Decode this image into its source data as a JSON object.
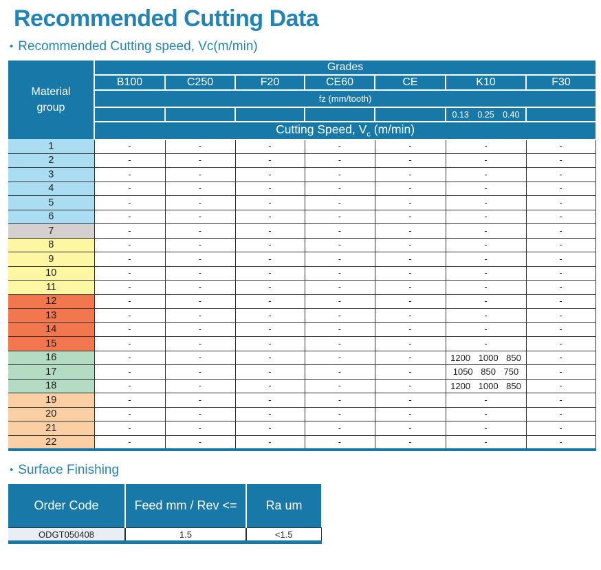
{
  "page": {
    "title": "Recommended Cutting Data",
    "bullet": "•"
  },
  "sections": {
    "cutting_speed_heading": "Recommended Cutting speed, Vc(m/min)",
    "surface_finishing_heading": "Surface Finishing"
  },
  "colors": {
    "header_blue": "#1878a8",
    "title_blue": "#2383b4",
    "row_blue": "#aadcf2",
    "row_gray": "#d4d0d0",
    "row_yellow": "#fdf6a2",
    "row_orange": "#f2764e",
    "row_green": "#b4dcc2",
    "row_peach": "#fbcfa4",
    "surface_code_cell_bg": "#e9edf4"
  },
  "cutting_table": {
    "material_group_label": "Material group",
    "grades_title": "Grades",
    "grade_columns": [
      "B100",
      "C250",
      "F20",
      "CE60",
      "CE",
      "K10",
      "F30"
    ],
    "fz_label": "fz (mm/tooth)",
    "k10_fz_values": "0.13 0.25 0.40",
    "cutting_speed_label": {
      "prefix": "Cutting Speed, V",
      "sub": "c",
      "suffix": " (m/min)"
    },
    "rows": [
      {
        "group": "1",
        "color": "blue",
        "values": [
          "-",
          "-",
          "-",
          "-",
          "-",
          "-",
          "-"
        ]
      },
      {
        "group": "2",
        "color": "blue",
        "values": [
          "-",
          "-",
          "-",
          "-",
          "-",
          "-",
          "-"
        ]
      },
      {
        "group": "3",
        "color": "blue",
        "values": [
          "-",
          "-",
          "-",
          "-",
          "-",
          "-",
          "-"
        ]
      },
      {
        "group": "4",
        "color": "blue",
        "values": [
          "-",
          "-",
          "-",
          "-",
          "-",
          "-",
          "-"
        ]
      },
      {
        "group": "5",
        "color": "blue",
        "values": [
          "-",
          "-",
          "-",
          "-",
          "-",
          "-",
          "-"
        ]
      },
      {
        "group": "6",
        "color": "blue",
        "values": [
          "-",
          "-",
          "-",
          "-",
          "-",
          "-",
          "-"
        ]
      },
      {
        "group": "7",
        "color": "gray",
        "values": [
          "-",
          "-",
          "-",
          "-",
          "-",
          "-",
          "-"
        ]
      },
      {
        "group": "8",
        "color": "yellow",
        "values": [
          "-",
          "-",
          "-",
          "-",
          "-",
          "-",
          "-"
        ]
      },
      {
        "group": "9",
        "color": "yellow",
        "values": [
          "-",
          "-",
          "-",
          "-",
          "-",
          "-",
          "-"
        ]
      },
      {
        "group": "10",
        "color": "yellow",
        "values": [
          "-",
          "-",
          "-",
          "-",
          "-",
          "-",
          "-"
        ]
      },
      {
        "group": "11",
        "color": "yellow",
        "values": [
          "-",
          "-",
          "-",
          "-",
          "-",
          "-",
          "-"
        ]
      },
      {
        "group": "12",
        "color": "orange",
        "values": [
          "-",
          "-",
          "-",
          "-",
          "-",
          "-",
          "-"
        ]
      },
      {
        "group": "13",
        "color": "orange",
        "values": [
          "-",
          "-",
          "-",
          "-",
          "-",
          "-",
          "-"
        ]
      },
      {
        "group": "14",
        "color": "orange",
        "values": [
          "-",
          "-",
          "-",
          "-",
          "-",
          "-",
          "-"
        ]
      },
      {
        "group": "15",
        "color": "orange",
        "values": [
          "-",
          "-",
          "-",
          "-",
          "-",
          "-",
          "-"
        ]
      },
      {
        "group": "16",
        "color": "green",
        "values": [
          "-",
          "-",
          "-",
          "-",
          "-",
          "1200 1000 850",
          "-"
        ]
      },
      {
        "group": "17",
        "color": "green",
        "values": [
          "-",
          "-",
          "-",
          "-",
          "-",
          "1050 850 750",
          "-"
        ]
      },
      {
        "group": "18",
        "color": "green",
        "values": [
          "-",
          "-",
          "-",
          "-",
          "-",
          "1200 1000 850",
          "-"
        ]
      },
      {
        "group": "19",
        "color": "peach",
        "values": [
          "-",
          "-",
          "-",
          "-",
          "-",
          "-",
          "-"
        ]
      },
      {
        "group": "20",
        "color": "peach",
        "values": [
          "-",
          "-",
          "-",
          "-",
          "-",
          "-",
          "-"
        ]
      },
      {
        "group": "21",
        "color": "peach",
        "values": [
          "-",
          "-",
          "-",
          "-",
          "-",
          "-",
          "-"
        ]
      },
      {
        "group": "22",
        "color": "peach",
        "values": [
          "-",
          "-",
          "-",
          "-",
          "-",
          "-",
          "-"
        ]
      }
    ]
  },
  "surface_table": {
    "headers": [
      "Order Code",
      "Feed mm / Rev <=",
      "Ra um"
    ],
    "rows": [
      [
        "ODGT050408",
        "1.5",
        "<1.5"
      ]
    ]
  }
}
